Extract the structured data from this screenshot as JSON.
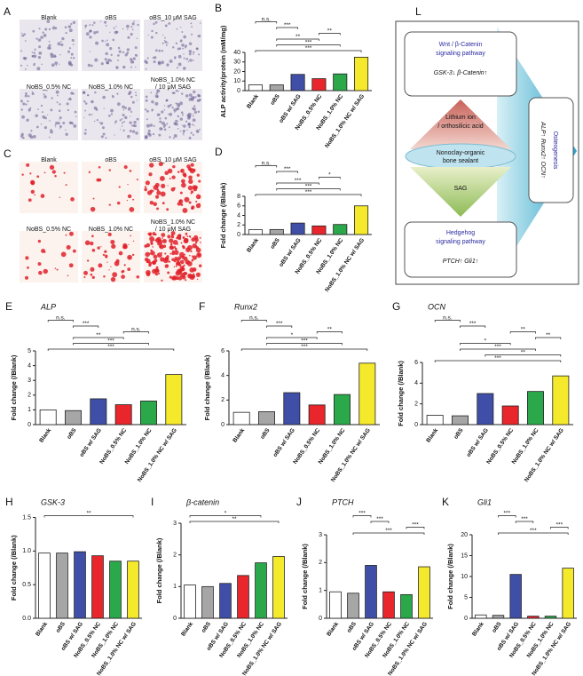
{
  "image_panels": [
    {
      "panel": "A",
      "labels": [
        [
          "Blank"
        ],
        [
          "oBS"
        ],
        [
          "oBS_10 μM SAG"
        ],
        [
          "NoBS_0.5% NC"
        ],
        [
          "NoBS_1.0% NC"
        ],
        [
          "NoBS_1.0% NC",
          "/ 10 μM SAG"
        ]
      ]
    },
    {
      "panel": "C",
      "labels": [
        [
          "Blank"
        ],
        [
          "oBS"
        ],
        [
          "oBS_10 μM SAG"
        ],
        [
          "NoBS_0.5% NC"
        ],
        [
          "NoBS_1.0% NC"
        ],
        [
          "NoBS_1.0% NC",
          "/ 10 μM SAG"
        ]
      ]
    }
  ],
  "diagram": {
    "panel": "L",
    "wnt": [
      "Wnt / β-Catenin",
      "signaling pathway"
    ],
    "wnt_markers": "GSK-3↓  β-Catenin↑",
    "lithium": [
      "Lithium ion",
      "/ orthosilicic acid"
    ],
    "sealant": [
      "Nonoclay-organic",
      "bone sealant"
    ],
    "sag": "SAG",
    "hedgehog": [
      "Hedgehog",
      "signaling pathway"
    ],
    "hedgehog_markers": "PTCH↑  Gli1↑",
    "outcome": "Osteogenesis",
    "outcome_markers": "ALP↑  Runx2↑  OCN↑"
  },
  "chart_data": [
    {
      "type": "bar",
      "panel": "B",
      "ylabel": "ALP activity/protein (mM/mg)",
      "categories": [
        "Blank",
        "oBS",
        "oBS w/ SAG",
        "NoBS_0.5% NC",
        "NoBS_1.0% NC",
        "NoBS_1.0% NC w/ SAG"
      ],
      "values": [
        6,
        6,
        17,
        12.5,
        17.5,
        35
      ],
      "colors": [
        "#ffffff",
        "#a6a6a6",
        "#3f4fa8",
        "#e8262b",
        "#2aa84a",
        "#f5e92b"
      ],
      "ylim": [
        0,
        40
      ],
      "yticks": [
        0,
        10,
        20,
        30,
        40
      ],
      "annotations": [
        {
          "text": "n.s.",
          "between": [
            0,
            1
          ]
        },
        {
          "text": "***",
          "between": [
            1,
            2
          ]
        },
        {
          "text": "**",
          "between": [
            3,
            4
          ]
        },
        {
          "text": "**",
          "between": [
            1,
            3
          ]
        },
        {
          "text": "***",
          "between": [
            1,
            4
          ]
        },
        {
          "text": "***",
          "between": [
            0,
            5
          ]
        }
      ]
    },
    {
      "type": "bar",
      "panel": "D",
      "ylabel": "Fold change (/Blank)",
      "categories": [
        "Blank",
        "oBS",
        "oBS w/ SAG",
        "NoBS_0.5% NC",
        "NoBS_1.0% NC",
        "NoBS_1.0% NC w/ SAG"
      ],
      "values": [
        1,
        1.05,
        2.4,
        1.8,
        2.1,
        6
      ],
      "colors": [
        "#ffffff",
        "#a6a6a6",
        "#3f4fa8",
        "#e8262b",
        "#2aa84a",
        "#f5e92b"
      ],
      "ylim": [
        0,
        8
      ],
      "yticks": [
        0,
        2,
        4,
        6,
        8
      ],
      "annotations": [
        {
          "text": "n.s.",
          "between": [
            0,
            1
          ]
        },
        {
          "text": "***",
          "between": [
            1,
            2
          ]
        },
        {
          "text": "*",
          "between": [
            3,
            4
          ]
        },
        {
          "text": "***",
          "between": [
            1,
            3
          ]
        },
        {
          "text": "***",
          "between": [
            1,
            4
          ]
        },
        {
          "text": "***",
          "between": [
            0,
            5
          ]
        }
      ]
    },
    {
      "type": "bar",
      "panel": "E",
      "title": "ALP",
      "ylabel": "Fold change (/Blank)",
      "categories": [
        "Blank",
        "oBS",
        "oBS w/ SAG",
        "NoBS_0.5% NC",
        "NoBS_1.0% NC",
        "NoBS_1.0% NC w/ SAG"
      ],
      "values": [
        1,
        0.95,
        1.75,
        1.35,
        1.6,
        3.4
      ],
      "colors": [
        "#ffffff",
        "#a6a6a6",
        "#3f4fa8",
        "#e8262b",
        "#2aa84a",
        "#f5e92b"
      ],
      "ylim": [
        0,
        5
      ],
      "yticks": [
        0,
        1,
        2,
        3,
        4,
        5
      ],
      "annotations": [
        {
          "text": "n.s.",
          "between": [
            0,
            1
          ]
        },
        {
          "text": "***",
          "between": [
            1,
            2
          ]
        },
        {
          "text": "n.s.",
          "between": [
            3,
            4
          ]
        },
        {
          "text": "**",
          "between": [
            1,
            3
          ]
        },
        {
          "text": "***",
          "between": [
            1,
            4
          ]
        },
        {
          "text": "***",
          "between": [
            0,
            5
          ]
        }
      ]
    },
    {
      "type": "bar",
      "panel": "F",
      "title": "Runx2",
      "ylabel": "Fold change (/Blank)",
      "categories": [
        "Blank",
        "oBS",
        "oBS w/ SAG",
        "NoBS_0.5% NC",
        "NoBS_1.0% NC",
        "NoBS_1.0% NC w/ SAG"
      ],
      "values": [
        1,
        1.05,
        2.6,
        1.6,
        2.45,
        5
      ],
      "colors": [
        "#ffffff",
        "#a6a6a6",
        "#3f4fa8",
        "#e8262b",
        "#2aa84a",
        "#f5e92b"
      ],
      "ylim": [
        0,
        6
      ],
      "yticks": [
        0,
        2,
        4,
        6
      ],
      "annotations": [
        {
          "text": "n.s.",
          "between": [
            0,
            1
          ]
        },
        {
          "text": "***",
          "between": [
            1,
            2
          ]
        },
        {
          "text": "**",
          "between": [
            3,
            4
          ]
        },
        {
          "text": "*",
          "between": [
            1,
            3
          ]
        },
        {
          "text": "***",
          "between": [
            1,
            4
          ]
        },
        {
          "text": "***",
          "between": [
            0,
            5
          ]
        }
      ]
    },
    {
      "type": "bar",
      "panel": "G",
      "title": "OCN",
      "ylabel": "Fold change (/Blank)",
      "categories": [
        "Blank",
        "oBS",
        "oBS w/ SAG",
        "NoBS_0.5% NC",
        "NoBS_1.0% NC",
        "NoBS_1.0% NC w/ SAG"
      ],
      "values": [
        0.9,
        0.85,
        3,
        1.8,
        3.2,
        4.7
      ],
      "colors": [
        "#ffffff",
        "#a6a6a6",
        "#3f4fa8",
        "#e8262b",
        "#2aa84a",
        "#f5e92b"
      ],
      "ylim": [
        0,
        6
      ],
      "yticks": [
        0,
        2,
        4,
        6
      ],
      "annotations": [
        {
          "text": "n.s.",
          "between": [
            0,
            1
          ]
        },
        {
          "text": "***",
          "between": [
            1,
            2
          ]
        },
        {
          "text": "**",
          "between": [
            3,
            4
          ]
        },
        {
          "text": "**",
          "between": [
            4,
            5
          ]
        },
        {
          "text": "*",
          "between": [
            1,
            3
          ]
        },
        {
          "text": "***",
          "between": [
            1,
            4
          ]
        },
        {
          "text": "**",
          "between": [
            2,
            5
          ]
        },
        {
          "text": "***",
          "between": [
            0,
            5
          ]
        }
      ]
    },
    {
      "type": "bar",
      "panel": "H",
      "title": "GSK-3",
      "ylabel": "Fold change (/Blank)",
      "categories": [
        "Blank",
        "oBS",
        "oBS w/ SAG",
        "NoBS_0.5% NC",
        "NoBS_1.0% NC",
        "NoBS_1.0% NC w/ SAG"
      ],
      "values": [
        0.97,
        0.97,
        0.99,
        0.93,
        0.85,
        0.85
      ],
      "colors": [
        "#ffffff",
        "#a6a6a6",
        "#3f4fa8",
        "#e8262b",
        "#2aa84a",
        "#f5e92b"
      ],
      "ylim": [
        0,
        1.5
      ],
      "yticks": [
        {
          "value": 0,
          "label": "0.0"
        },
        {
          "value": 0.5,
          "label": "0.5"
        },
        {
          "value": 1,
          "label": "1.0"
        },
        {
          "value": 1.5,
          "label": "1.5"
        }
      ],
      "annotations": [
        {
          "text": "**",
          "between": [
            0,
            5
          ]
        }
      ]
    },
    {
      "type": "bar",
      "panel": "I",
      "title": "β-catenin",
      "ylabel": "Fold change (/Blank)",
      "categories": [
        "Blank",
        "oBS",
        "oBS w/ SAG",
        "NoBS_0.5% NC",
        "NoBS_1.0% NC",
        "NoBS_1.0% NC w/ SAG"
      ],
      "values": [
        1.05,
        1,
        1.1,
        1.35,
        1.75,
        1.95
      ],
      "colors": [
        "#ffffff",
        "#a6a6a6",
        "#3f4fa8",
        "#e8262b",
        "#2aa84a",
        "#f5e92b"
      ],
      "ylim": [
        0,
        3
      ],
      "yticks": [
        0,
        1,
        2,
        3
      ],
      "annotations": [
        {
          "text": "*",
          "between": [
            0,
            4
          ]
        },
        {
          "text": "**",
          "between": [
            0,
            5
          ]
        }
      ]
    },
    {
      "type": "bar",
      "panel": "J",
      "title": "PTCH",
      "ylabel": "Fold change (/Blank)",
      "categories": [
        "Blank",
        "oBS",
        "oBS w/ SAG",
        "NoBS_0.5% NC",
        "NoBS_1.0% NC",
        "NoBS_1.0% NC w/ SAG"
      ],
      "values": [
        0.95,
        0.9,
        1.9,
        0.95,
        0.85,
        1.85
      ],
      "colors": [
        "#ffffff",
        "#a6a6a6",
        "#3f4fa8",
        "#e8262b",
        "#2aa84a",
        "#f5e92b"
      ],
      "ylim": [
        0,
        3
      ],
      "yticks": [
        0,
        1,
        2,
        3
      ],
      "annotations": [
        {
          "text": "***",
          "between": [
            1,
            2
          ]
        },
        {
          "text": "***",
          "between": [
            2,
            3
          ]
        },
        {
          "text": "***",
          "between": [
            4,
            5
          ]
        },
        {
          "text": "***",
          "between": [
            1,
            5
          ]
        }
      ]
    },
    {
      "type": "bar",
      "panel": "K",
      "title": "Gli1",
      "ylabel": "Fold change (/Blank)",
      "categories": [
        "Blank",
        "oBS",
        "oBS w/ SAG",
        "NoBS_0.5% NC",
        "NoBS_1.0% NC",
        "NoBS_1.0% NC w/ SAG"
      ],
      "values": [
        0.8,
        0.7,
        10.5,
        0.5,
        0.5,
        12
      ],
      "colors": [
        "#ffffff",
        "#a6a6a6",
        "#3f4fa8",
        "#e8262b",
        "#2aa84a",
        "#f5e92b"
      ],
      "ylim": [
        0,
        20
      ],
      "yticks": [
        0,
        5,
        10,
        15,
        20
      ],
      "annotations": [
        {
          "text": "***",
          "between": [
            1,
            2
          ]
        },
        {
          "text": "***",
          "between": [
            2,
            3
          ]
        },
        {
          "text": "***",
          "between": [
            4,
            5
          ]
        },
        {
          "text": "***",
          "between": [
            1,
            5
          ]
        }
      ]
    }
  ]
}
